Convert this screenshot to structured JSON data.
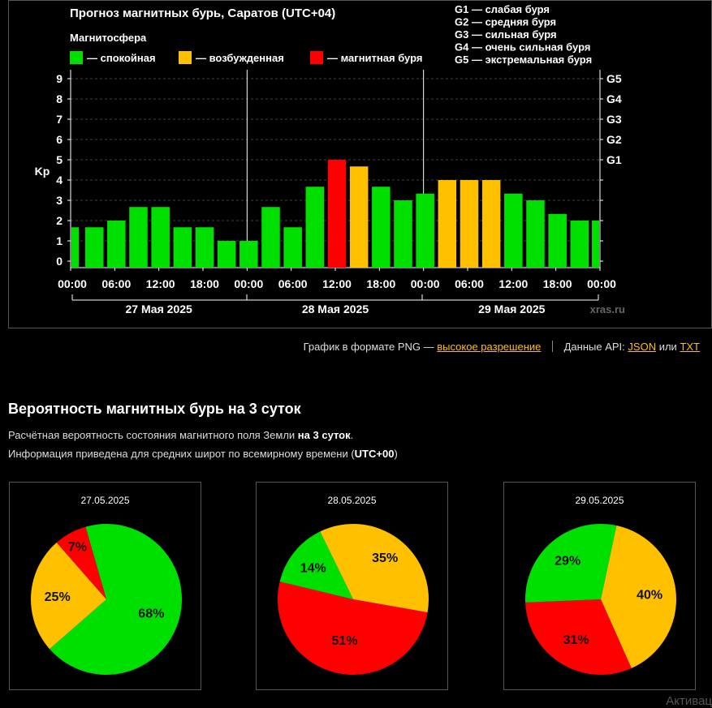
{
  "chart_data": [
    {
      "type": "bar",
      "title": "Прогноз магнитных бурь, Саратов (UTC+04)",
      "legend_title": "Магнитосфера",
      "legend": [
        {
          "label": "— спокойная",
          "color": "#00e000"
        },
        {
          "label": "— возбужденная",
          "color": "#ffc000"
        },
        {
          "label": "— магнитная буря",
          "color": "#ff0000"
        }
      ],
      "storm_scale": [
        "G1 — слабая буря",
        "G2 — средняя буря",
        "G3 — сильная буря",
        "G4 — очень сильная буря",
        "G5 — экстремальная буря"
      ],
      "ylabel": "Kp",
      "ylim": [
        0,
        9
      ],
      "yticks": [
        0,
        1,
        2,
        3,
        4,
        5,
        6,
        7,
        8,
        9
      ],
      "right_ticks": [
        {
          "value": 5,
          "label": "G1"
        },
        {
          "value": 6,
          "label": "G2"
        },
        {
          "value": 7,
          "label": "G3"
        },
        {
          "value": 8,
          "label": "G4"
        },
        {
          "value": 9,
          "label": "G5"
        }
      ],
      "xtick_labels": [
        "00:00",
        "06:00",
        "12:00",
        "18:00",
        "00:00",
        "06:00",
        "12:00",
        "18:00",
        "00:00",
        "06:00",
        "12:00",
        "18:00",
        "00:00"
      ],
      "days": [
        "27 Мая 2025",
        "28 Мая 2025",
        "29 Мая 2025"
      ],
      "watermark": "xras.ru",
      "values": [
        1.67,
        1.67,
        2,
        2.67,
        2.67,
        1.67,
        1.67,
        1,
        1,
        2.67,
        1.67,
        3.67,
        5,
        4.67,
        3.67,
        3,
        3.33,
        4,
        4,
        4,
        3.33,
        3,
        2.33,
        2,
        2
      ],
      "colors": {
        "quiet": "#00e000",
        "active": "#ffc000",
        "storm": "#ff0000"
      },
      "grid": true
    },
    {
      "type": "pie",
      "title": "27.05.2025",
      "slices": [
        {
          "label": "68%",
          "value": 68,
          "color": "#00e000"
        },
        {
          "label": "25%",
          "value": 25,
          "color": "#ffc000"
        },
        {
          "label": "7%",
          "value": 7,
          "color": "#ff0000"
        }
      ]
    },
    {
      "type": "pie",
      "title": "28.05.2025",
      "slices": [
        {
          "label": "35%",
          "value": 35,
          "color": "#ffc000"
        },
        {
          "label": "51%",
          "value": 51,
          "color": "#ff0000"
        },
        {
          "label": "14%",
          "value": 14,
          "color": "#00e000"
        }
      ]
    },
    {
      "type": "pie",
      "title": "29.05.2025",
      "slices": [
        {
          "label": "40%",
          "value": 40,
          "color": "#ffc000"
        },
        {
          "label": "31%",
          "value": 31,
          "color": "#ff0000"
        },
        {
          "label": "29%",
          "value": 29,
          "color": "#00e000"
        }
      ]
    }
  ],
  "links": {
    "png_text": "График в формате PNG —",
    "png_link": "высокое разрешение",
    "api_text": "Данные API:",
    "json_link": "JSON",
    "or_text": "или",
    "txt_link": "TXT"
  },
  "section": {
    "title": "Вероятность магнитных бурь на 3 суток",
    "desc1_prefix": "Расчётная вероятность состояния магнитного поля Земли ",
    "desc1_bold": "на 3 суток",
    "desc1_suffix": ".",
    "desc2_prefix": "Информация приведена для средних широт по всемирному времени (",
    "desc2_bold": "UTC+00",
    "desc2_suffix": ")"
  },
  "corner_fragment": "Активац"
}
